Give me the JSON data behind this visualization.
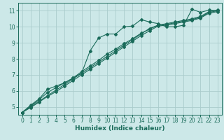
{
  "title": "",
  "xlabel": "Humidex (Indice chaleur)",
  "ylabel": "",
  "bg_color": "#cce8e8",
  "grid_color": "#aacccc",
  "line_color": "#1a6b5a",
  "xlim": [
    -0.5,
    23.5
  ],
  "ylim": [
    4.5,
    11.5
  ],
  "yticks": [
    5,
    6,
    7,
    8,
    9,
    10,
    11
  ],
  "xticks": [
    0,
    1,
    2,
    3,
    4,
    5,
    6,
    7,
    8,
    9,
    10,
    11,
    12,
    13,
    14,
    15,
    16,
    17,
    18,
    19,
    20,
    21,
    22,
    23
  ],
  "lines": [
    {
      "x": [
        0,
        1,
        2,
        3,
        4,
        5,
        6,
        7,
        8,
        9,
        10,
        11,
        12,
        13,
        14,
        15,
        16,
        17,
        18,
        19,
        20,
        21,
        22,
        23
      ],
      "y": [
        4.65,
        5.1,
        5.5,
        6.1,
        6.3,
        6.5,
        6.8,
        7.1,
        8.5,
        9.3,
        9.55,
        9.55,
        10.0,
        10.05,
        10.45,
        10.3,
        10.2,
        10.0,
        10.0,
        10.1,
        11.1,
        10.9,
        11.05,
        11.0
      ]
    },
    {
      "x": [
        0,
        1,
        2,
        3,
        4,
        5,
        6,
        7,
        8,
        9,
        10,
        11,
        12,
        13,
        14,
        15,
        16,
        17,
        18,
        19,
        20,
        21,
        22,
        23
      ],
      "y": [
        4.65,
        5.0,
        5.35,
        5.7,
        6.05,
        6.4,
        6.75,
        7.1,
        7.45,
        7.8,
        8.15,
        8.5,
        8.85,
        9.2,
        9.55,
        9.9,
        10.1,
        10.2,
        10.3,
        10.4,
        10.5,
        10.65,
        10.95,
        11.05
      ]
    },
    {
      "x": [
        0,
        1,
        2,
        3,
        4,
        5,
        6,
        7,
        8,
        9,
        10,
        11,
        12,
        13,
        14,
        15,
        16,
        17,
        18,
        19,
        20,
        21,
        22,
        23
      ],
      "y": [
        4.65,
        5.05,
        5.45,
        5.9,
        6.2,
        6.5,
        6.8,
        7.2,
        7.55,
        7.9,
        8.3,
        8.6,
        8.95,
        9.25,
        9.6,
        9.85,
        10.1,
        10.15,
        10.25,
        10.35,
        10.45,
        10.6,
        10.9,
        11.0
      ]
    },
    {
      "x": [
        0,
        1,
        2,
        3,
        4,
        5,
        6,
        7,
        8,
        9,
        10,
        11,
        12,
        13,
        14,
        15,
        16,
        17,
        18,
        19,
        20,
        21,
        22,
        23
      ],
      "y": [
        4.65,
        4.95,
        5.3,
        5.65,
        5.95,
        6.3,
        6.65,
        7.0,
        7.35,
        7.7,
        8.05,
        8.4,
        8.75,
        9.1,
        9.45,
        9.75,
        10.05,
        10.1,
        10.2,
        10.3,
        10.4,
        10.55,
        10.85,
        10.95
      ]
    }
  ]
}
